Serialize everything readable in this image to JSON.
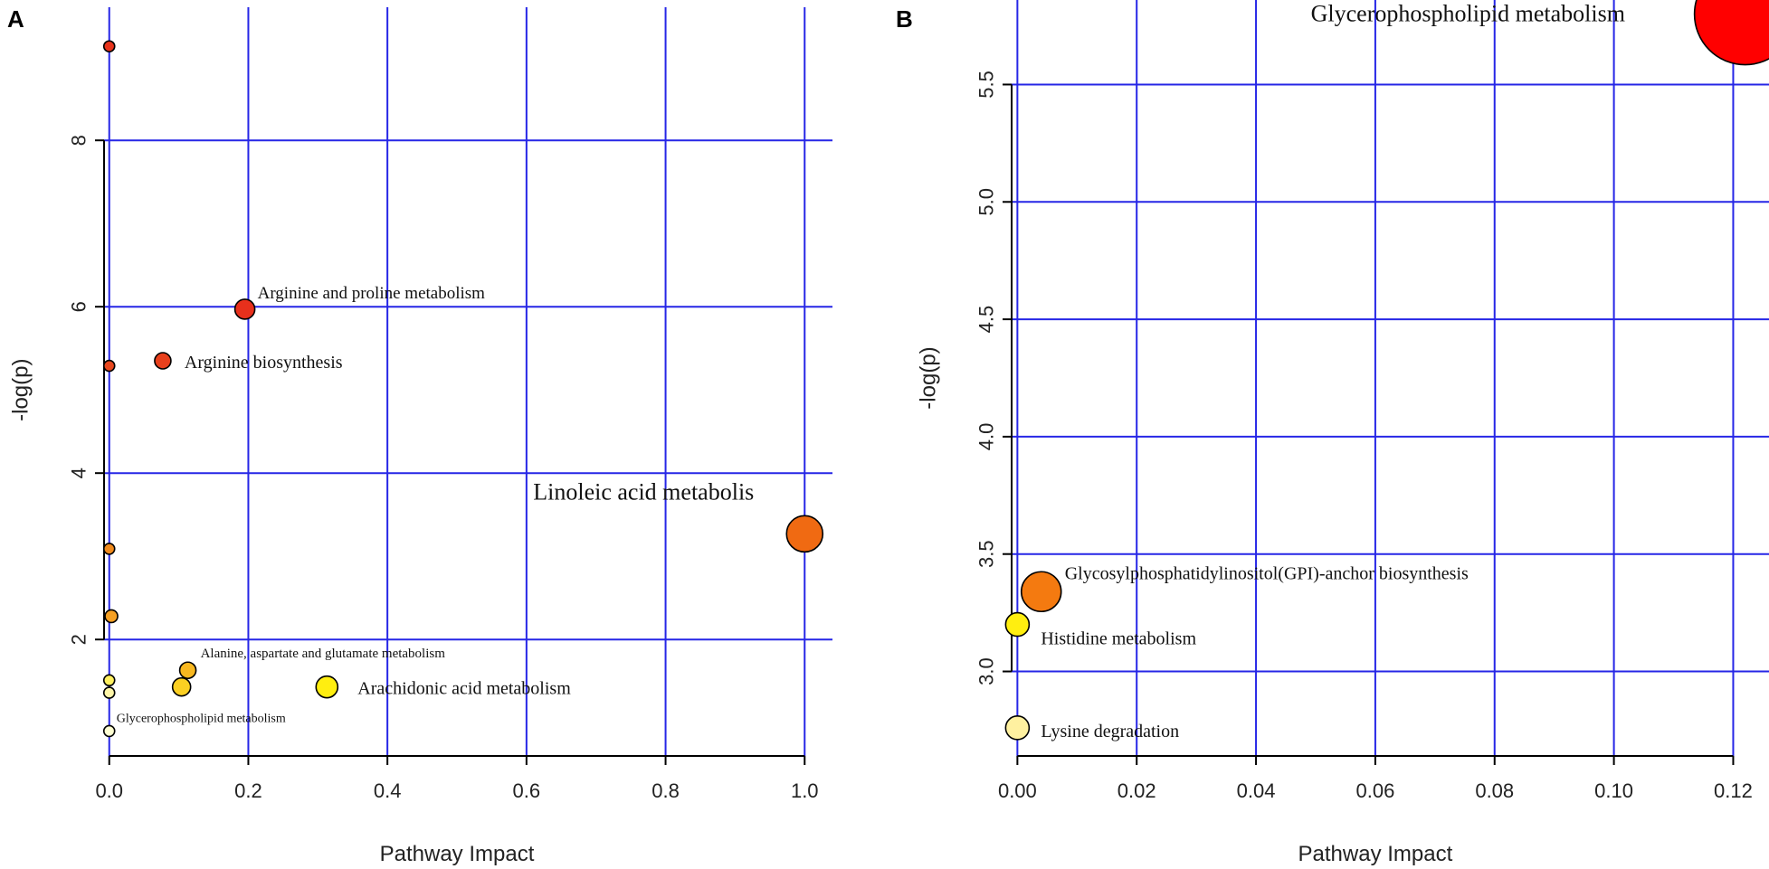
{
  "chart_data": [
    {
      "type": "scatter",
      "panel": "A",
      "xlabel": "Pathway Impact",
      "ylabel": "-log(p)",
      "xlim": [
        -0.04,
        1.04
      ],
      "ylim": [
        0.6,
        9.6
      ],
      "x_ticks": [
        0.0,
        0.2,
        0.4,
        0.6,
        0.8,
        1.0
      ],
      "x_tick_labels": [
        "0.0",
        "0.2",
        "0.4",
        "0.6",
        "0.8",
        "1.0"
      ],
      "y_ticks": [
        2,
        4,
        6,
        8
      ],
      "y_tick_labels": [
        "2",
        "4",
        "6",
        "8"
      ],
      "grid": true,
      "points": [
        {
          "x": 0.0,
          "y": 9.13,
          "color": "#e8341c",
          "label": ""
        },
        {
          "x": 0.195,
          "y": 5.97,
          "color": "#e8301c",
          "label": "Arginine and proline metabolism"
        },
        {
          "x": 0.0,
          "y": 5.29,
          "color": "#e8481e",
          "label": ""
        },
        {
          "x": 0.077,
          "y": 5.35,
          "color": "#e8401c",
          "label": "Arginine biosynthesis"
        },
        {
          "x": 1.0,
          "y": 3.27,
          "color": "#f06a12",
          "label": "Linoleic acid metabolis"
        },
        {
          "x": 0.0,
          "y": 3.09,
          "color": "#f08a1c",
          "label": ""
        },
        {
          "x": 0.003,
          "y": 2.28,
          "color": "#f5a023",
          "label": ""
        },
        {
          "x": 0.113,
          "y": 1.63,
          "color": "#f8b820",
          "label": "Alanine, aspartate and glutamate metabolism"
        },
        {
          "x": 0.104,
          "y": 1.43,
          "color": "#fbcf22",
          "label": ""
        },
        {
          "x": 0.313,
          "y": 1.43,
          "color": "#ffee10",
          "label": "Arachidonic acid metabolism"
        },
        {
          "x": 0.0,
          "y": 1.51,
          "color": "#fff060",
          "label": ""
        },
        {
          "x": 0.0,
          "y": 1.36,
          "color": "#fff6a8",
          "label": ""
        },
        {
          "x": 0.0,
          "y": 0.9,
          "color": "#ffffd2",
          "label": "Glycerophospholipid metabolism"
        }
      ]
    },
    {
      "type": "scatter",
      "panel": "B",
      "xlabel": "Pathway Impact",
      "ylabel": "-log(p)",
      "xlim": [
        -0.004,
        0.126
      ],
      "ylim": [
        2.64,
        5.86
      ],
      "x_ticks": [
        0.0,
        0.02,
        0.04,
        0.06,
        0.08,
        0.1,
        0.12
      ],
      "x_tick_labels": [
        "0.00",
        "0.02",
        "0.04",
        "0.06",
        "0.08",
        "0.10",
        "0.12"
      ],
      "y_ticks": [
        3.0,
        3.5,
        4.0,
        4.5,
        5.0,
        5.5
      ],
      "y_tick_labels": [
        "3.0",
        "3.5",
        "4.0",
        "4.5",
        "5.0",
        "5.5"
      ],
      "grid": true,
      "points": [
        {
          "x": 0.122,
          "y": 5.8,
          "color": "#ff0000",
          "label": "Glycerophospholipid metabolism"
        },
        {
          "x": 0.004,
          "y": 3.34,
          "color": "#f47a10",
          "label": "Glycosylphosphatidylinositol(GPI)-anchor biosynthesis"
        },
        {
          "x": 0.0,
          "y": 3.2,
          "color": "#ffee10",
          "label": "Histidine metabolism"
        },
        {
          "x": 0.0,
          "y": 2.76,
          "color": "#fff1a0",
          "label": "Lysine degradation"
        }
      ]
    }
  ]
}
